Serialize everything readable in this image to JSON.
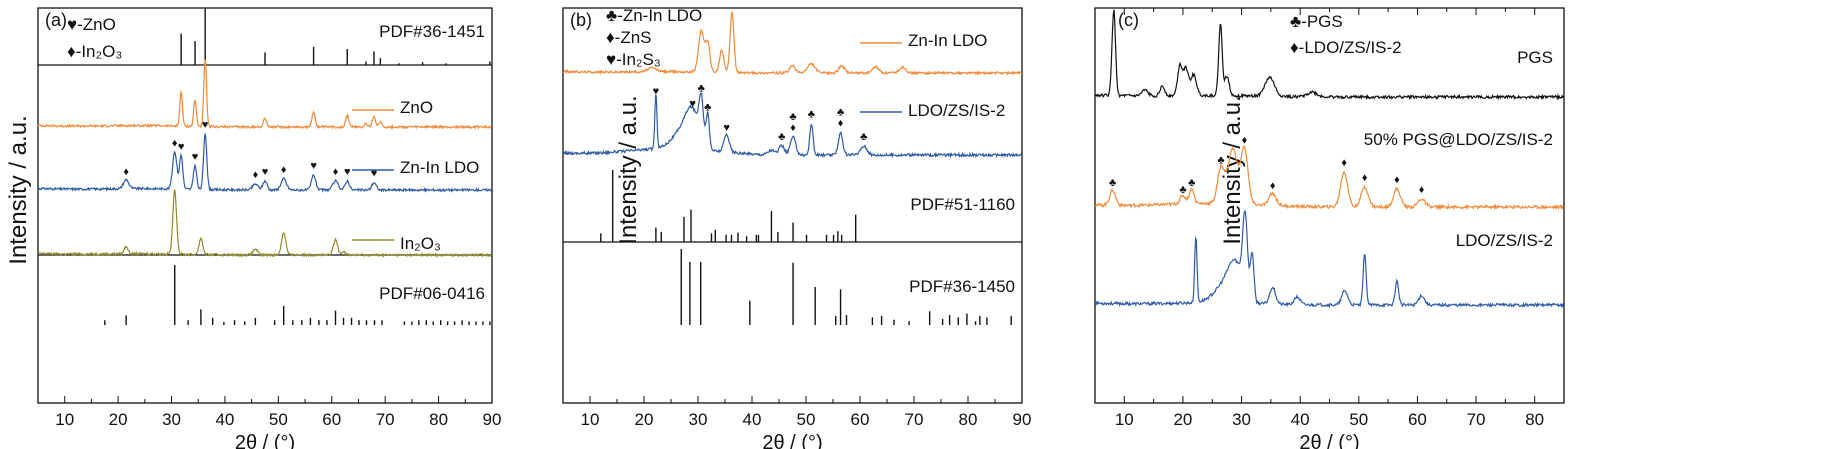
{
  "colors": {
    "black": "#111111",
    "orange": "#ef8a3a",
    "blue": "#2f5aa6",
    "olive": "#8f8a2c"
  },
  "xlabel": "2θ / (°)",
  "ylabel": "Intensity / a.u.",
  "chart_data": [
    {
      "type": "line",
      "panel": "(a)",
      "xlabel": "2θ / (°)",
      "ylabel": "Intensity / a.u.",
      "xlim": [
        5,
        90
      ],
      "xticks": [
        10,
        20,
        30,
        40,
        50,
        60,
        70,
        80,
        90
      ],
      "marker_legend": [
        {
          "symbol": "♥",
          "text": "-ZnO"
        },
        {
          "symbol": "♦",
          "text": "-In₂O₃"
        }
      ],
      "reference_patterns": [
        {
          "name": "PDF#36-1451",
          "peaks": [
            [
              31.8,
              0.55
            ],
            [
              34.4,
              0.42
            ],
            [
              36.3,
              1.0
            ],
            [
              47.5,
              0.22
            ],
            [
              56.6,
              0.32
            ],
            [
              62.9,
              0.28
            ],
            [
              66.4,
              0.06
            ],
            [
              67.9,
              0.24
            ],
            [
              69.1,
              0.12
            ],
            [
              72.6,
              0.03
            ],
            [
              77.0,
              0.05
            ],
            [
              81.4,
              0.03
            ],
            [
              89.6,
              0.06
            ]
          ]
        },
        {
          "name": "PDF#06-0416",
          "peaks": [
            [
              17.5,
              0.08
            ],
            [
              21.5,
              0.16
            ],
            [
              30.6,
              1.0
            ],
            [
              33.1,
              0.08
            ],
            [
              35.5,
              0.26
            ],
            [
              37.7,
              0.12
            ],
            [
              39.8,
              0.05
            ],
            [
              41.8,
              0.08
            ],
            [
              43.7,
              0.06
            ],
            [
              45.7,
              0.12
            ],
            [
              49.3,
              0.08
            ],
            [
              51.0,
              0.32
            ],
            [
              52.7,
              0.08
            ],
            [
              54.4,
              0.08
            ],
            [
              56.0,
              0.12
            ],
            [
              57.6,
              0.08
            ],
            [
              59.1,
              0.08
            ],
            [
              60.7,
              0.24
            ],
            [
              62.2,
              0.12
            ],
            [
              63.7,
              0.12
            ],
            [
              65.1,
              0.08
            ],
            [
              66.5,
              0.08
            ],
            [
              68.0,
              0.08
            ],
            [
              69.4,
              0.08
            ],
            [
              73.6,
              0.06
            ],
            [
              75.0,
              0.06
            ],
            [
              76.3,
              0.08
            ],
            [
              77.7,
              0.08
            ],
            [
              79.0,
              0.06
            ],
            [
              80.4,
              0.08
            ],
            [
              81.7,
              0.06
            ],
            [
              83.0,
              0.06
            ],
            [
              84.4,
              0.08
            ],
            [
              85.7,
              0.06
            ],
            [
              87.0,
              0.06
            ],
            [
              88.3,
              0.06
            ],
            [
              89.6,
              0.06
            ]
          ]
        }
      ],
      "series": [
        {
          "name": "ZnO",
          "color": "#ef8a3a",
          "baseline": 0.12,
          "peaks": [
            [
              31.8,
              0.45,
              0.25
            ],
            [
              34.4,
              0.35,
              0.25
            ],
            [
              36.3,
              0.9,
              0.25
            ],
            [
              47.5,
              0.12,
              0.3
            ],
            [
              56.6,
              0.2,
              0.3
            ],
            [
              62.9,
              0.15,
              0.3
            ],
            [
              66.4,
              0.04,
              0.3
            ],
            [
              67.9,
              0.14,
              0.3
            ],
            [
              69.1,
              0.07,
              0.3
            ]
          ]
        },
        {
          "name": "Zn-In LDO",
          "color": "#2f5aa6",
          "baseline": 0.12,
          "peaks": [
            [
              21.5,
              0.12,
              0.5
            ],
            [
              30.6,
              0.5,
              0.4
            ],
            [
              31.8,
              0.45,
              0.3
            ],
            [
              34.4,
              0.32,
              0.3
            ],
            [
              36.3,
              0.75,
              0.3
            ],
            [
              45.7,
              0.08,
              0.5
            ],
            [
              47.5,
              0.12,
              0.4
            ],
            [
              51.0,
              0.15,
              0.5
            ],
            [
              56.6,
              0.2,
              0.4
            ],
            [
              60.7,
              0.12,
              0.5
            ],
            [
              62.9,
              0.12,
              0.4
            ],
            [
              67.9,
              0.1,
              0.4
            ]
          ]
        },
        {
          "name": "In₂O₃",
          "color": "#8f8a2c",
          "baseline": 0.1,
          "peaks": [
            [
              21.5,
              0.1,
              0.35
            ],
            [
              30.6,
              0.85,
              0.35
            ],
            [
              35.5,
              0.22,
              0.35
            ],
            [
              45.7,
              0.08,
              0.4
            ],
            [
              51.0,
              0.3,
              0.4
            ],
            [
              60.7,
              0.2,
              0.4
            ],
            [
              62.2,
              0.05,
              0.4
            ]
          ]
        }
      ],
      "annotations": [
        {
          "on": "Zn-In LDO",
          "markers": [
            [
              21.5,
              "♦"
            ],
            [
              30.6,
              "♦"
            ],
            [
              31.8,
              "♥"
            ],
            [
              34.4,
              "♥"
            ],
            [
              36.3,
              "♥"
            ],
            [
              45.7,
              "♦"
            ],
            [
              47.5,
              "♥"
            ],
            [
              51.0,
              "♦"
            ],
            [
              56.6,
              "♥"
            ],
            [
              60.7,
              "♦"
            ],
            [
              62.9,
              "♥"
            ],
            [
              67.9,
              "♥"
            ]
          ]
        }
      ]
    },
    {
      "type": "line",
      "panel": "(b)",
      "xlabel": "2θ / (°)",
      "ylabel": "Intensity / a.u.",
      "xlim": [
        5,
        90
      ],
      "xticks": [
        10,
        20,
        30,
        40,
        50,
        60,
        70,
        80,
        90
      ],
      "marker_legend": [
        {
          "symbol": "♣",
          "text": "-Zn-In LDO"
        },
        {
          "symbol": "♦",
          "text": "-ZnS"
        },
        {
          "symbol": "♥",
          "text": "-In₂S₃"
        }
      ],
      "reference_patterns": [
        {
          "name": "PDF#51-1160",
          "peaks": [
            [
              12.0,
              0.12
            ],
            [
              14.2,
              1.0
            ],
            [
              22.2,
              0.2
            ],
            [
              23.2,
              0.14
            ],
            [
              27.4,
              0.35
            ],
            [
              28.7,
              0.45
            ],
            [
              32.5,
              0.12
            ],
            [
              33.2,
              0.17
            ],
            [
              35.2,
              0.1
            ],
            [
              36.2,
              0.1
            ],
            [
              37.4,
              0.13
            ],
            [
              39.0,
              0.08
            ],
            [
              40.8,
              0.1
            ],
            [
              41.2,
              0.1
            ],
            [
              43.6,
              0.43
            ],
            [
              44.8,
              0.14
            ],
            [
              47.6,
              0.27
            ],
            [
              50.1,
              0.1
            ],
            [
              53.8,
              0.1
            ],
            [
              55.1,
              0.1
            ],
            [
              55.9,
              0.15
            ],
            [
              56.6,
              0.1
            ],
            [
              59.2,
              0.38
            ]
          ]
        },
        {
          "name": "PDF#36-1450",
          "peaks": [
            [
              26.9,
              1.0
            ],
            [
              28.5,
              0.83
            ],
            [
              30.5,
              0.83
            ],
            [
              39.6,
              0.32
            ],
            [
              47.6,
              0.82
            ],
            [
              51.7,
              0.5
            ],
            [
              55.5,
              0.12
            ],
            [
              56.4,
              0.47
            ],
            [
              57.5,
              0.13
            ],
            [
              62.3,
              0.1
            ],
            [
              64.0,
              0.12
            ],
            [
              66.3,
              0.07
            ],
            [
              69.1,
              0.05
            ],
            [
              72.9,
              0.18
            ],
            [
              75.3,
              0.08
            ],
            [
              76.6,
              0.13
            ],
            [
              78.2,
              0.1
            ],
            [
              79.8,
              0.15
            ],
            [
              81.4,
              0.05
            ],
            [
              82.2,
              0.12
            ],
            [
              83.5,
              0.1
            ],
            [
              88.0,
              0.12
            ]
          ]
        }
      ],
      "series": [
        {
          "name": "Zn-In LDO",
          "color": "#ef8a3a",
          "baseline": 0.12,
          "peaks": [
            [
              30.6,
              0.55,
              0.5
            ],
            [
              31.8,
              0.4,
              0.4
            ],
            [
              34.4,
              0.3,
              0.4
            ],
            [
              36.3,
              0.8,
              0.35
            ],
            [
              21.5,
              0.05,
              0.8
            ],
            [
              47.5,
              0.1,
              0.5
            ],
            [
              51.0,
              0.12,
              0.7
            ],
            [
              56.6,
              0.1,
              0.5
            ],
            [
              62.9,
              0.08,
              0.6
            ],
            [
              67.9,
              0.08,
              0.6
            ]
          ]
        },
        {
          "name": "LDO/ZS/IS-2",
          "color": "#2f5aa6",
          "baseline": 0.2,
          "peaks": [
            [
              22.2,
              0.6,
              0.2
            ],
            [
              27.5,
              0.22,
              2.0
            ],
            [
              29.0,
              0.3,
              1.2
            ],
            [
              30.6,
              0.45,
              0.4
            ],
            [
              31.8,
              0.38,
              0.3
            ],
            [
              35.3,
              0.2,
              0.5
            ],
            [
              45.5,
              0.1,
              0.5
            ],
            [
              47.6,
              0.2,
              0.5
            ],
            [
              51.0,
              0.35,
              0.3
            ],
            [
              56.4,
              0.25,
              0.4
            ],
            [
              60.7,
              0.1,
              0.6
            ],
            [
              43.6,
              0.05,
              0.6
            ]
          ]
        }
      ],
      "annotations": [
        {
          "on": "LDO/ZS/IS-2",
          "markers": [
            [
              22.2,
              "♥"
            ],
            [
              29.0,
              "♥"
            ],
            [
              30.6,
              "♣"
            ],
            [
              31.8,
              "♣"
            ],
            [
              35.3,
              "♥"
            ],
            [
              45.5,
              "♣"
            ],
            [
              47.6,
              "♣♦"
            ],
            [
              51.0,
              "♣"
            ],
            [
              56.4,
              "♣♦"
            ],
            [
              60.7,
              "♣"
            ]
          ]
        }
      ]
    },
    {
      "type": "line",
      "panel": "(c)",
      "xlabel": "2θ / (°)",
      "ylabel": "Intensity / a.u.",
      "xlim": [
        5,
        85
      ],
      "xticks": [
        10,
        20,
        30,
        40,
        50,
        60,
        70,
        80
      ],
      "marker_legend": [
        {
          "symbol": "♣",
          "text": "-PGS"
        },
        {
          "symbol": "♦",
          "text": "-LDO/ZS/IS-2"
        }
      ],
      "series": [
        {
          "name": "PGS",
          "color": "#111111",
          "baseline": 0.1,
          "peaks": [
            [
              8.2,
              0.9,
              0.3
            ],
            [
              13.5,
              0.06,
              0.5
            ],
            [
              16.5,
              0.1,
              0.4
            ],
            [
              19.5,
              0.32,
              0.4
            ],
            [
              20.5,
              0.28,
              0.4
            ],
            [
              21.8,
              0.22,
              0.5
            ],
            [
              26.4,
              0.75,
              0.3
            ],
            [
              27.5,
              0.2,
              0.4
            ],
            [
              34.8,
              0.2,
              0.8
            ],
            [
              42.0,
              0.05,
              0.8
            ]
          ]
        },
        {
          "name": "50% PGS@LDO/ZS/IS-2",
          "color": "#ef8a3a",
          "baseline": 0.25,
          "peaks": [
            [
              8.0,
              0.15,
              0.5
            ],
            [
              20.0,
              0.08,
              0.5
            ],
            [
              21.5,
              0.15,
              0.4
            ],
            [
              26.5,
              0.35,
              0.6
            ],
            [
              28.5,
              0.55,
              0.8
            ],
            [
              30.5,
              0.55,
              0.6
            ],
            [
              35.3,
              0.12,
              0.6
            ],
            [
              47.5,
              0.35,
              0.6
            ],
            [
              51.0,
              0.2,
              0.6
            ],
            [
              56.5,
              0.18,
              0.6
            ],
            [
              60.7,
              0.08,
              0.6
            ]
          ]
        },
        {
          "name": "LDO/ZS/IS-2",
          "color": "#2f5aa6",
          "baseline": 0.15,
          "peaks": [
            [
              22.2,
              0.7,
              0.2
            ],
            [
              27.5,
              0.2,
              2.0
            ],
            [
              29.0,
              0.3,
              1.2
            ],
            [
              30.6,
              0.8,
              0.4
            ],
            [
              31.8,
              0.5,
              0.3
            ],
            [
              35.3,
              0.18,
              0.5
            ],
            [
              39.5,
              0.08,
              0.5
            ],
            [
              47.6,
              0.15,
              0.5
            ],
            [
              51.0,
              0.55,
              0.25
            ],
            [
              56.5,
              0.25,
              0.3
            ],
            [
              60.7,
              0.1,
              0.5
            ]
          ]
        }
      ],
      "annotations": [
        {
          "on": "50% PGS@LDO/ZS/IS-2",
          "markers": [
            [
              8.0,
              "♣"
            ],
            [
              20.0,
              "♣"
            ],
            [
              21.5,
              "♣"
            ],
            [
              26.5,
              "♣"
            ],
            [
              30.5,
              "♦"
            ],
            [
              35.3,
              "♦"
            ],
            [
              47.5,
              "♦"
            ],
            [
              51.0,
              "♦"
            ],
            [
              56.5,
              "♦"
            ],
            [
              60.7,
              "♦"
            ]
          ]
        }
      ]
    }
  ]
}
